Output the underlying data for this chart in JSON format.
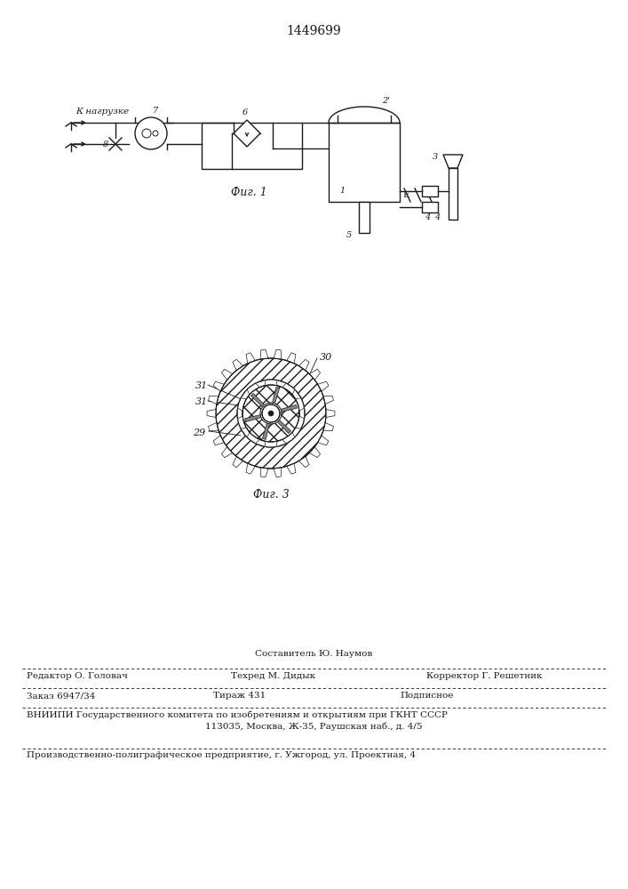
{
  "patent_number": "1449699",
  "background_color": "#ffffff",
  "line_color": "#1a1a1a",
  "fig1_caption": "Фиг. 1",
  "fig3_caption": "Фиг. 3",
  "footer": {
    "line1_center": "Составитель Ю. Наумов",
    "line2_left": "Редактор О. Головач",
    "line2_mid": "Техред М. Дидык",
    "line2_right": "Корректор Г. Решетник",
    "line3_left": "Заказ 6947/34",
    "line3_mid": "Тираж 431",
    "line3_right": "Подписное",
    "line4": "ВНИИПИ Государственного комитета по изобретениям и открытиям при ГКНТ СССР",
    "line5": "113035, Москва, Ж-35, Раушская наб., д. 4/5",
    "line6": "Производственно-полиграфическое предприятие, г. Ужгород, ул. Проектная, 4"
  }
}
